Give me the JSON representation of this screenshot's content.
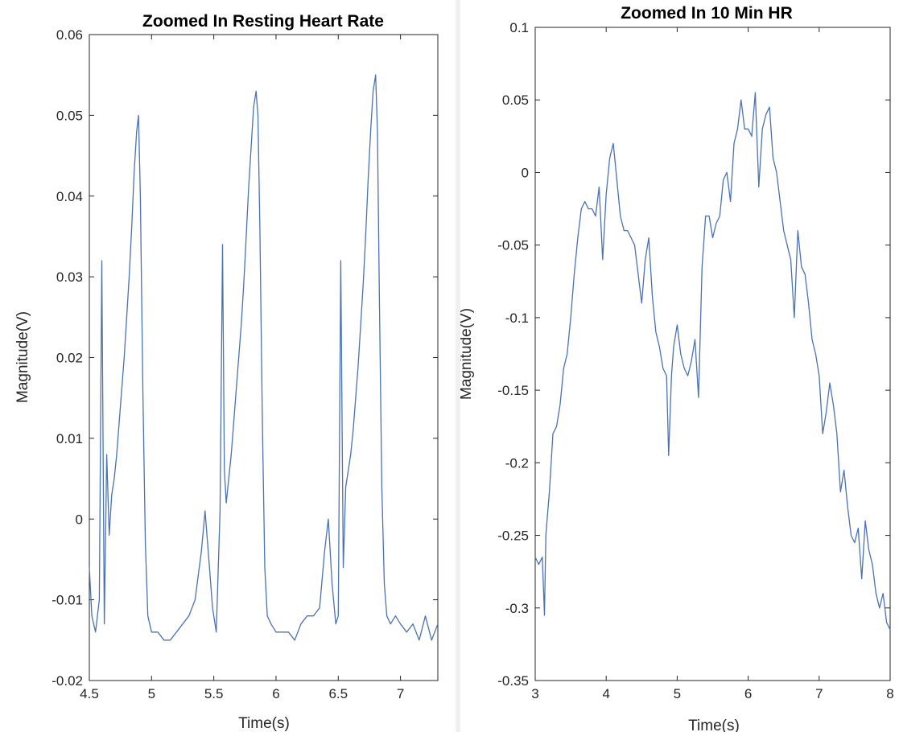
{
  "chart_data": [
    {
      "type": "line",
      "title": "Zoomed In Resting Heart Rate",
      "xlabel": "Time(s)",
      "ylabel": "Magnitude(V)",
      "xlim": [
        4.5,
        7.3
      ],
      "ylim": [
        -0.02,
        0.06
      ],
      "xticks": [
        "4.5",
        "5",
        "5.5",
        "6",
        "6.5",
        "7"
      ],
      "yticks": [
        "-0.02",
        "-0.01",
        "0",
        "0.01",
        "0.02",
        "0.03",
        "0.04",
        "0.05",
        "0.06"
      ],
      "grid": false,
      "line_color": "#4a72b5",
      "series": [
        {
          "x": [
            4.5,
            4.52,
            4.55,
            4.58,
            4.6,
            4.62,
            4.64,
            4.66,
            4.68,
            4.7,
            4.72,
            4.74,
            4.76,
            4.78,
            4.8,
            4.82,
            4.84,
            4.86,
            4.88,
            4.895,
            4.91,
            4.93,
            4.95,
            4.97,
            5.0,
            5.05,
            5.1,
            5.15,
            5.2,
            5.25,
            5.3,
            5.35,
            5.4,
            5.43,
            5.46,
            5.49,
            5.52,
            5.55,
            5.57,
            5.585,
            5.6,
            5.62,
            5.64,
            5.66,
            5.68,
            5.7,
            5.72,
            5.74,
            5.76,
            5.78,
            5.8,
            5.82,
            5.84,
            5.855,
            5.87,
            5.89,
            5.91,
            5.93,
            5.96,
            6.0,
            6.05,
            6.1,
            6.15,
            6.2,
            6.25,
            6.3,
            6.35,
            6.39,
            6.42,
            6.45,
            6.48,
            6.5,
            6.52,
            6.54,
            6.56,
            6.58,
            6.6,
            6.62,
            6.64,
            6.66,
            6.68,
            6.7,
            6.72,
            6.74,
            6.76,
            6.78,
            6.8,
            6.815,
            6.83,
            6.85,
            6.87,
            6.89,
            6.92,
            6.96,
            7.0,
            7.05,
            7.1,
            7.15,
            7.2,
            7.25,
            7.3
          ],
          "y": [
            -0.006,
            -0.012,
            -0.014,
            -0.01,
            0.032,
            -0.013,
            0.008,
            -0.002,
            0.003,
            0.005,
            0.008,
            0.012,
            0.016,
            0.02,
            0.025,
            0.03,
            0.036,
            0.043,
            0.048,
            0.05,
            0.04,
            0.016,
            -0.003,
            -0.012,
            -0.014,
            -0.014,
            -0.015,
            -0.015,
            -0.014,
            -0.013,
            -0.012,
            -0.01,
            -0.004,
            0.001,
            -0.005,
            -0.011,
            -0.014,
            0.001,
            0.034,
            0.006,
            0.002,
            0.005,
            0.008,
            0.012,
            0.016,
            0.02,
            0.024,
            0.029,
            0.035,
            0.041,
            0.046,
            0.051,
            0.053,
            0.05,
            0.036,
            0.012,
            -0.006,
            -0.012,
            -0.013,
            -0.014,
            -0.014,
            -0.014,
            -0.015,
            -0.013,
            -0.012,
            -0.012,
            -0.011,
            -0.004,
            0.0,
            -0.008,
            -0.013,
            -0.012,
            0.032,
            -0.006,
            0.004,
            0.006,
            0.008,
            0.011,
            0.015,
            0.019,
            0.024,
            0.029,
            0.035,
            0.042,
            0.048,
            0.053,
            0.055,
            0.048,
            0.028,
            0.004,
            -0.008,
            -0.012,
            -0.013,
            -0.012,
            -0.013,
            -0.014,
            -0.013,
            -0.015,
            -0.012,
            -0.015,
            -0.013
          ]
        }
      ]
    },
    {
      "type": "line",
      "title": "Zoomed In 10 Min HR",
      "xlabel": "Time(s)",
      "ylabel": "Magnitude(V)",
      "xlim": [
        3,
        8
      ],
      "ylim": [
        -0.35,
        0.1
      ],
      "xticks": [
        "3",
        "4",
        "5",
        "6",
        "7",
        "8"
      ],
      "yticks": [
        "-0.35",
        "-0.3",
        "-0.25",
        "-0.2",
        "-0.15",
        "-0.1",
        "-0.05",
        "0",
        "0.05",
        "0.1"
      ],
      "grid": false,
      "line_color": "#4a72b5",
      "series": [
        {
          "x": [
            3.0,
            3.05,
            3.1,
            3.13,
            3.15,
            3.2,
            3.25,
            3.3,
            3.35,
            3.4,
            3.45,
            3.5,
            3.55,
            3.6,
            3.65,
            3.7,
            3.75,
            3.8,
            3.85,
            3.9,
            3.95,
            4.0,
            4.05,
            4.1,
            4.15,
            4.2,
            4.25,
            4.3,
            4.35,
            4.4,
            4.45,
            4.5,
            4.55,
            4.6,
            4.65,
            4.7,
            4.75,
            4.8,
            4.85,
            4.88,
            4.92,
            4.95,
            5.0,
            5.05,
            5.1,
            5.15,
            5.2,
            5.25,
            5.3,
            5.35,
            5.4,
            5.45,
            5.5,
            5.55,
            5.6,
            5.65,
            5.7,
            5.75,
            5.8,
            5.85,
            5.9,
            5.95,
            6.0,
            6.05,
            6.1,
            6.15,
            6.2,
            6.25,
            6.3,
            6.35,
            6.4,
            6.45,
            6.5,
            6.55,
            6.6,
            6.65,
            6.7,
            6.75,
            6.8,
            6.85,
            6.9,
            6.95,
            7.0,
            7.05,
            7.1,
            7.15,
            7.2,
            7.25,
            7.3,
            7.35,
            7.4,
            7.45,
            7.5,
            7.55,
            7.6,
            7.65,
            7.7,
            7.75,
            7.8,
            7.85,
            7.9,
            7.95,
            8.0
          ],
          "y": [
            -0.265,
            -0.27,
            -0.265,
            -0.305,
            -0.25,
            -0.22,
            -0.18,
            -0.175,
            -0.16,
            -0.135,
            -0.125,
            -0.1,
            -0.07,
            -0.045,
            -0.025,
            -0.02,
            -0.025,
            -0.025,
            -0.03,
            -0.01,
            -0.06,
            -0.015,
            0.01,
            0.02,
            -0.005,
            -0.03,
            -0.04,
            -0.04,
            -0.045,
            -0.05,
            -0.07,
            -0.09,
            -0.06,
            -0.045,
            -0.085,
            -0.11,
            -0.12,
            -0.135,
            -0.14,
            -0.195,
            -0.14,
            -0.12,
            -0.105,
            -0.125,
            -0.135,
            -0.14,
            -0.13,
            -0.115,
            -0.155,
            -0.065,
            -0.03,
            -0.03,
            -0.045,
            -0.035,
            -0.03,
            -0.005,
            0.0,
            -0.02,
            0.02,
            0.03,
            0.05,
            0.03,
            0.03,
            0.025,
            0.055,
            -0.01,
            0.03,
            0.04,
            0.045,
            0.01,
            0.0,
            -0.02,
            -0.04,
            -0.05,
            -0.06,
            -0.1,
            -0.04,
            -0.065,
            -0.07,
            -0.09,
            -0.115,
            -0.125,
            -0.14,
            -0.18,
            -0.165,
            -0.145,
            -0.16,
            -0.18,
            -0.22,
            -0.205,
            -0.23,
            -0.25,
            -0.255,
            -0.245,
            -0.28,
            -0.24,
            -0.26,
            -0.27,
            -0.29,
            -0.3,
            -0.29,
            -0.31,
            -0.315
          ]
        }
      ]
    }
  ]
}
